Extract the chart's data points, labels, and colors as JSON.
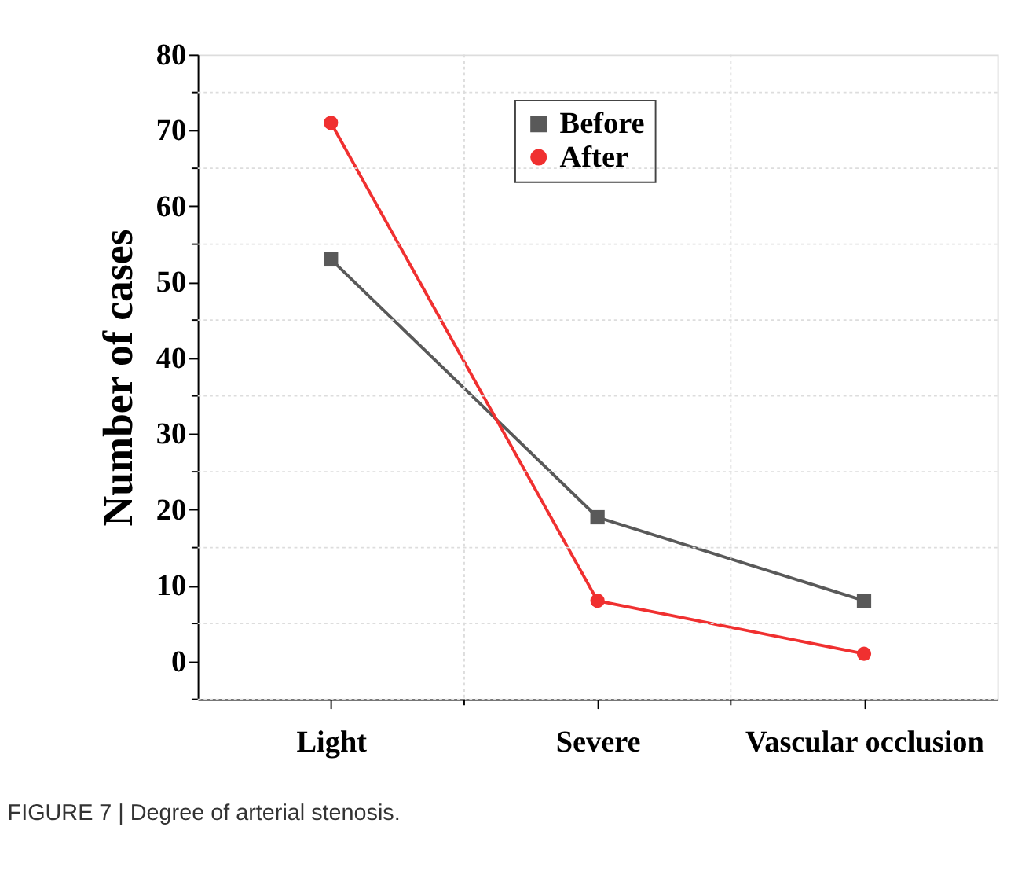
{
  "chart_data": {
    "type": "line",
    "xlabel": null,
    "ylabel": "Number of cases",
    "categories": [
      "Light",
      "Severe",
      "Vascular occlusion"
    ],
    "series": [
      {
        "name": "Before",
        "color": "#595959",
        "values": [
          53,
          19,
          8
        ],
        "marker": "square"
      },
      {
        "name": "After",
        "color": "#f03030",
        "values": [
          71,
          8,
          1
        ],
        "marker": "circle"
      }
    ],
    "ylim": [
      -5,
      80
    ],
    "yticks": [
      0,
      10,
      20,
      30,
      40,
      50,
      60,
      70,
      80
    ],
    "grid": true,
    "legend": "top right",
    "line_style": "solid",
    "annotations": [
      "FIGURE 7 | Degree of arterial stenosis."
    ]
  }
}
